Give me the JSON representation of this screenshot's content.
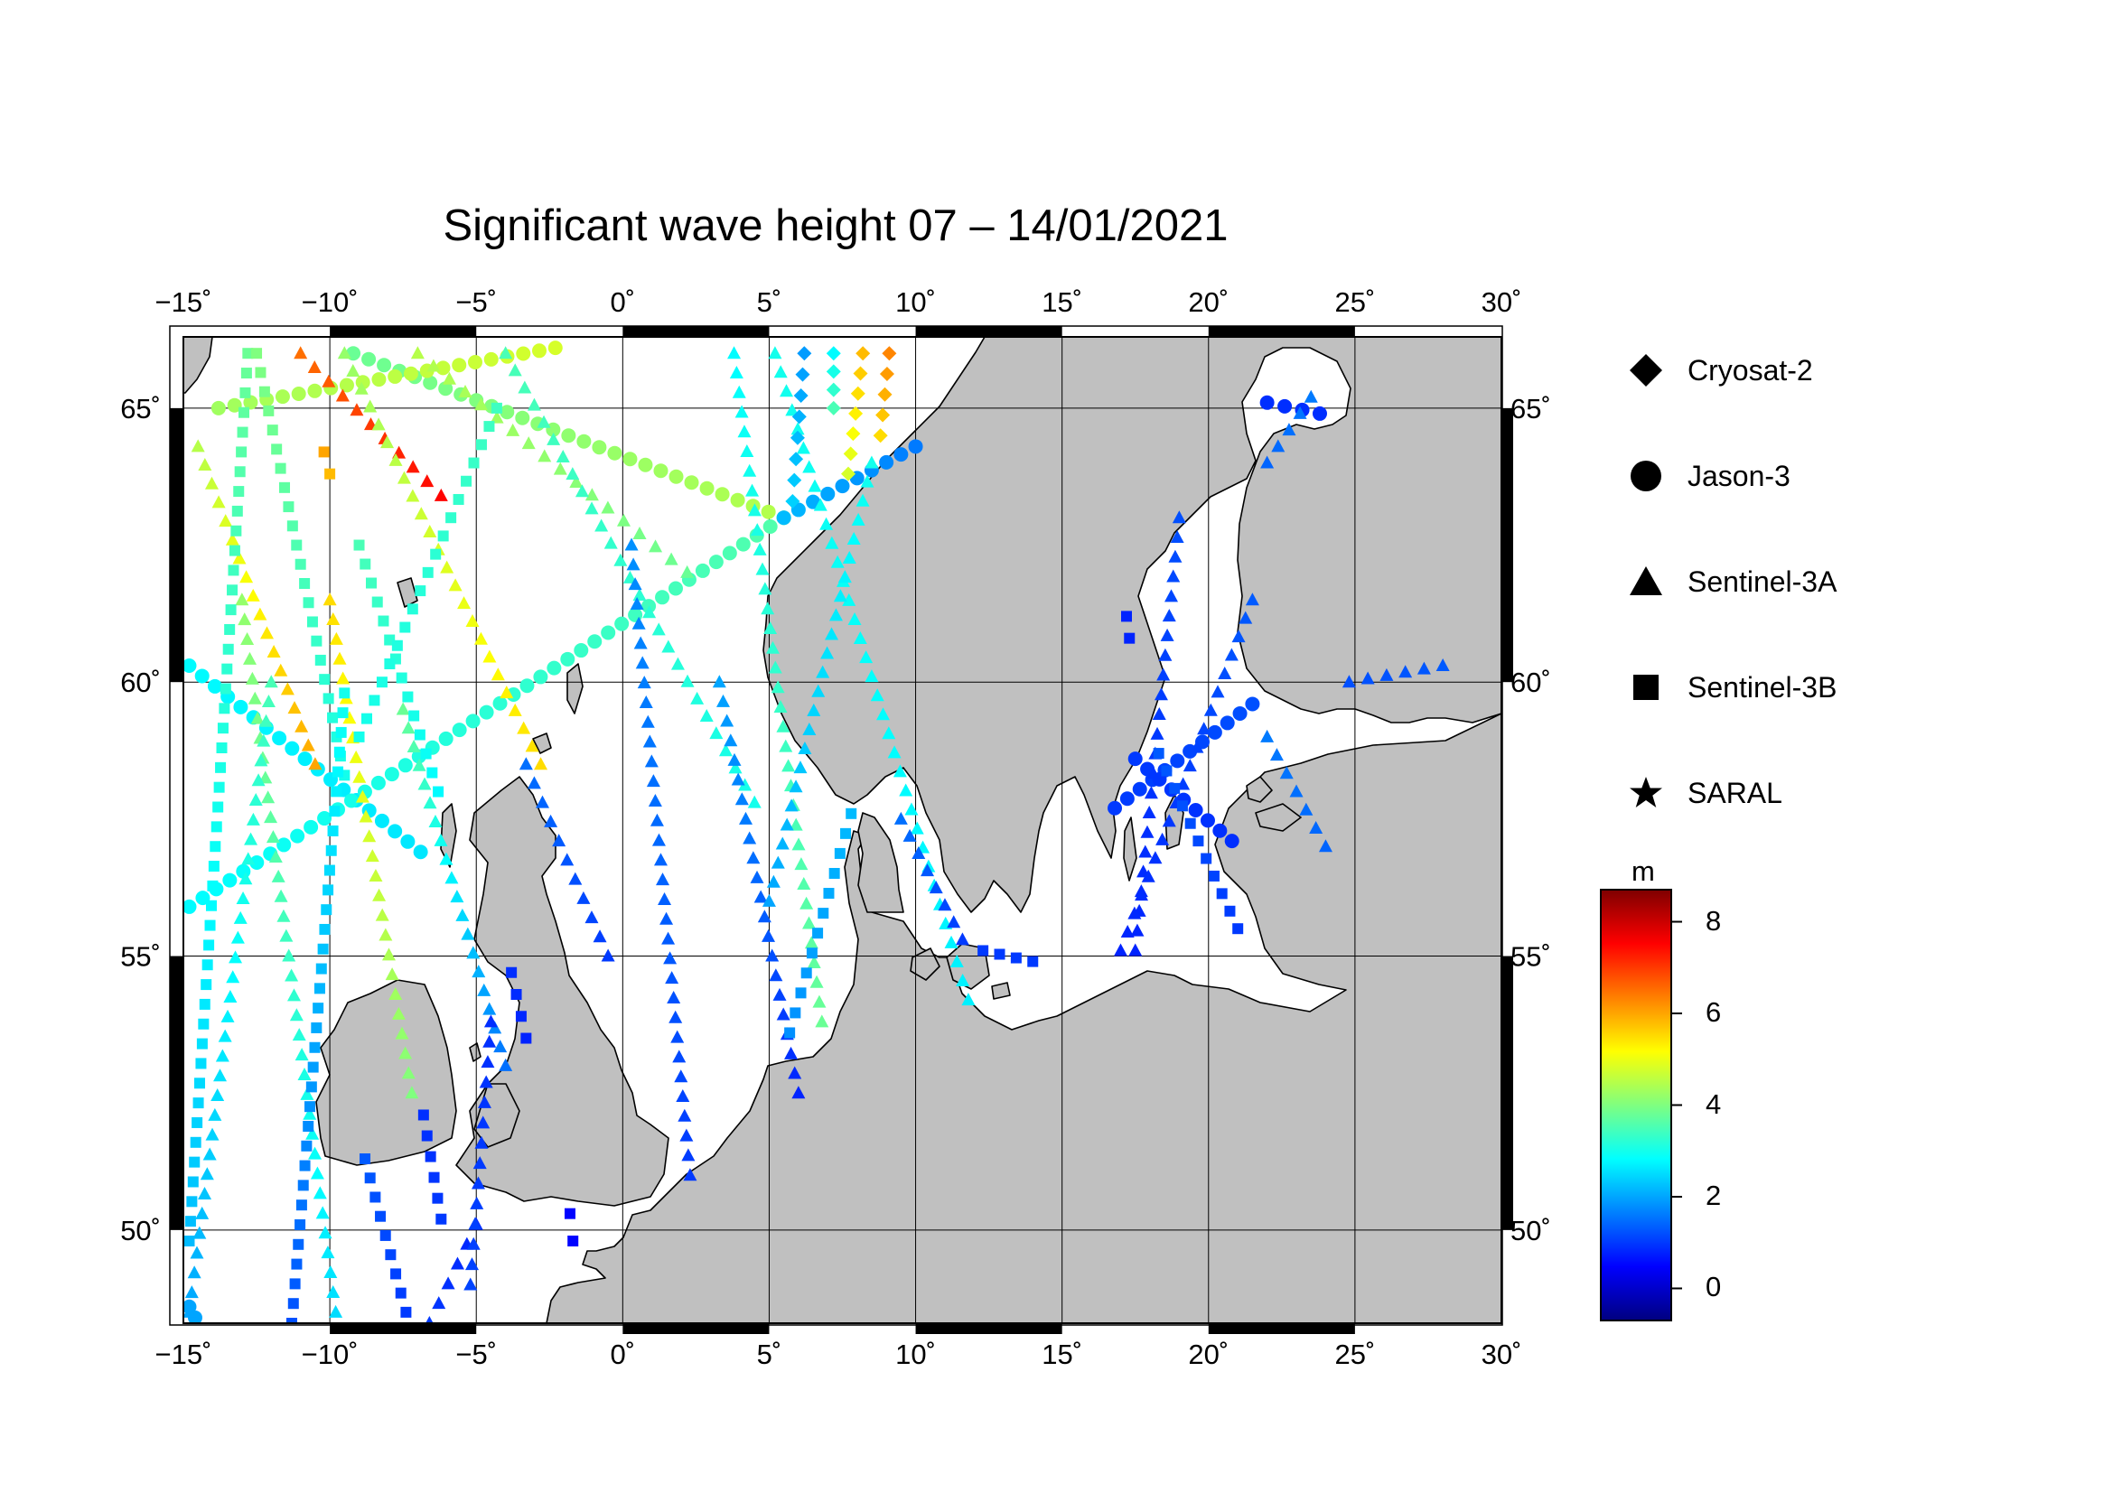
{
  "title": "Significant wave height 07 – 14/01/2021",
  "map": {
    "lon_range": [
      -15,
      30
    ],
    "lat_range": [
      48.3,
      66.3
    ],
    "lon_ticks": [
      {
        "value": -15,
        "label": "−15˚"
      },
      {
        "value": -10,
        "label": "−10˚"
      },
      {
        "value": -5,
        "label": "−5˚"
      },
      {
        "value": 0,
        "label": "0˚"
      },
      {
        "value": 5,
        "label": "5˚"
      },
      {
        "value": 10,
        "label": "10˚"
      },
      {
        "value": 15,
        "label": "15˚"
      },
      {
        "value": 20,
        "label": "20˚"
      },
      {
        "value": 25,
        "label": "25˚"
      },
      {
        "value": 30,
        "label": "30˚"
      }
    ],
    "lat_ticks": [
      {
        "value": 65,
        "label": "65˚"
      },
      {
        "value": 60,
        "label": "60˚"
      },
      {
        "value": 55,
        "label": "55˚"
      },
      {
        "value": 50,
        "label": "50˚"
      }
    ],
    "land_color": "#c0c0c0",
    "sea_color": "#ffffff",
    "grid": true
  },
  "legend": [
    {
      "symbol": "diamond",
      "label": "Cryosat-2"
    },
    {
      "symbol": "circle",
      "label": "Jason-3"
    },
    {
      "symbol": "triangle",
      "label": "Sentinel-3A"
    },
    {
      "symbol": "square",
      "label": "Sentinel-3B"
    },
    {
      "symbol": "star",
      "label": "SARAL"
    }
  ],
  "colorbar": {
    "unit": "m",
    "min": -0.7,
    "max": 8.7,
    "ticks": [
      {
        "value": 8,
        "label": "8"
      },
      {
        "value": 6,
        "label": "6"
      },
      {
        "value": 4,
        "label": "4"
      },
      {
        "value": 2,
        "label": "2"
      },
      {
        "value": 0,
        "label": "0"
      }
    ],
    "colormap": "jet"
  },
  "chart_data": {
    "type": "scatter",
    "title": "Significant wave height 07 – 14/01/2021",
    "xlabel": "",
    "ylabel": "",
    "x_unit": "degrees longitude",
    "y_unit": "degrees latitude",
    "value_unit": "m",
    "series": [
      {
        "name": "Jason-3",
        "marker": "circle",
        "tracks": [
          {
            "start": [
              -9.2,
              66.0
            ],
            "end": [
              5.5,
              63.0
            ],
            "hs": [
              3.8,
              4.5
            ]
          },
          {
            "start": [
              -14.8,
              60.3
            ],
            "end": [
              -6.9,
              56.9
            ],
            "hs": [
              2.8,
              2.6
            ]
          },
          {
            "start": [
              -14.8,
              55.9
            ],
            "end": [
              5.5,
              63.0
            ],
            "hs": [
              2.8,
              3.6
            ]
          },
          {
            "start": [
              -13.8,
              65.0
            ],
            "end": [
              -2.3,
              66.1
            ],
            "hs": [
              4.3,
              4.8
            ]
          },
          {
            "start": [
              5.5,
              63.0
            ],
            "end": [
              10.0,
              64.3
            ],
            "hs": [
              2.2,
              1.6
            ]
          },
          {
            "start": [
              16.8,
              57.7
            ],
            "end": [
              21.5,
              59.6
            ],
            "hs": [
              1.0,
              1.2
            ]
          },
          {
            "start": [
              17.5,
              58.6
            ],
            "end": [
              20.8,
              57.1
            ],
            "hs": [
              1.0,
              0.9
            ]
          },
          {
            "start": [
              22.0,
              65.1
            ],
            "end": [
              23.8,
              64.9
            ],
            "hs": [
              0.9,
              0.9
            ]
          },
          {
            "start": [
              -14.8,
              48.6
            ],
            "end": [
              -14.6,
              48.4
            ],
            "hs": [
              2.0,
              2.0
            ]
          }
        ]
      },
      {
        "name": "Sentinel-3A",
        "marker": "triangle",
        "tracks": [
          {
            "start": [
              -11.0,
              66.0
            ],
            "end": [
              -6.2,
              63.4
            ],
            "hs": [
              6.5,
              7.5
            ]
          },
          {
            "start": [
              -14.5,
              64.3
            ],
            "end": [
              -10.5,
              58.5
            ],
            "hs": [
              4.5,
              6.0
            ]
          },
          {
            "start": [
              -9.5,
              66.0
            ],
            "end": [
              -2.8,
              58.5
            ],
            "hs": [
              4.2,
              5.5
            ]
          },
          {
            "start": [
              -7.0,
              66.0
            ],
            "end": [
              2.2,
              62.0
            ],
            "hs": [
              4.5,
              3.8
            ]
          },
          {
            "start": [
              -4.0,
              66.0
            ],
            "end": [
              4.5,
              57.8
            ],
            "hs": [
              3.5,
              3.0
            ]
          },
          {
            "start": [
              5.2,
              66.0
            ],
            "end": [
              11.8,
              54.2
            ],
            "hs": [
              3.0,
              2.7
            ]
          },
          {
            "start": [
              3.8,
              66.0
            ],
            "end": [
              6.8,
              53.8
            ],
            "hs": [
              2.8,
              3.8
            ]
          },
          {
            "start": [
              -13.0,
              61.5
            ],
            "end": [
              -9.8,
              48.5
            ],
            "hs": [
              4.2,
              2.5
            ]
          },
          {
            "start": [
              -12.0,
              60.0
            ],
            "end": [
              -14.8,
              48.5
            ],
            "hs": [
              3.5,
              2.0
            ]
          },
          {
            "start": [
              -10.0,
              61.5
            ],
            "end": [
              -7.2,
              52.5
            ],
            "hs": [
              5.5,
              4.0
            ]
          },
          {
            "start": [
              -7.5,
              59.5
            ],
            "end": [
              -4.0,
              53.0
            ],
            "hs": [
              3.8,
              1.5
            ]
          },
          {
            "start": [
              -3.3,
              58.5
            ],
            "end": [
              -0.5,
              55.0
            ],
            "hs": [
              1.5,
              1.0
            ]
          },
          {
            "start": [
              0.3,
              62.5
            ],
            "end": [
              2.3,
              51.0
            ],
            "hs": [
              1.8,
              1.0
            ]
          },
          {
            "start": [
              3.3,
              60.0
            ],
            "end": [
              6.0,
              52.5
            ],
            "hs": [
              2.0,
              0.8
            ]
          },
          {
            "start": [
              8.5,
              64.0
            ],
            "end": [
              5.0,
              56.0
            ],
            "hs": [
              3.0,
              2.0
            ]
          },
          {
            "start": [
              9.5,
              57.5
            ],
            "end": [
              11.6,
              55.3
            ],
            "hs": [
              1.5,
              1.0
            ]
          },
          {
            "start": [
              19.0,
              63.0
            ],
            "end": [
              17.5,
              55.1
            ],
            "hs": [
              1.2,
              0.8
            ]
          },
          {
            "start": [
              17.0,
              55.1
            ],
            "end": [
              21.5,
              61.5
            ],
            "hs": [
              0.8,
              1.3
            ]
          },
          {
            "start": [
              22.0,
              64.0
            ],
            "end": [
              23.5,
              65.2
            ],
            "hs": [
              1.4,
              1.6
            ]
          },
          {
            "start": [
              22.0,
              59.0
            ],
            "end": [
              24.0,
              57.0
            ],
            "hs": [
              1.6,
              1.4
            ]
          },
          {
            "start": [
              24.8,
              60.0
            ],
            "end": [
              28.0,
              60.3
            ],
            "hs": [
              1.2,
              1.3
            ]
          },
          {
            "start": [
              -5.0,
              50.1
            ],
            "end": [
              -6.6,
              48.3
            ],
            "hs": [
              0.8,
              1.0
            ]
          },
          {
            "start": [
              -4.5,
              53.8
            ],
            "end": [
              -5.2,
              49.0
            ],
            "hs": [
              0.9,
              1.1
            ]
          }
        ]
      },
      {
        "name": "Sentinel-3B",
        "marker": "square",
        "tracks": [
          {
            "start": [
              -12.8,
              66.0
            ],
            "end": [
              -14.8,
              49.8
            ],
            "hs": [
              3.8,
              2.2
            ]
          },
          {
            "start": [
              -12.5,
              66.0
            ],
            "end": [
              -9.5,
              58.3
            ],
            "hs": [
              4.0,
              3.0
            ]
          },
          {
            "start": [
              -9.5,
              59.8
            ],
            "end": [
              -11.3,
              48.3
            ],
            "hs": [
              3.0,
              1.2
            ]
          },
          {
            "start": [
              -10.2,
              64.2
            ],
            "end": [
              -10.0,
              63.8
            ],
            "hs": [
              6.0,
              5.8
            ]
          },
          {
            "start": [
              -9.0,
              62.5
            ],
            "end": [
              -6.3,
              58.0
            ],
            "hs": [
              3.5,
              2.8
            ]
          },
          {
            "start": [
              -4.3,
              65.0
            ],
            "end": [
              -9.0,
              59.0
            ],
            "hs": [
              3.4,
              3.0
            ]
          },
          {
            "start": [
              -8.8,
              51.3
            ],
            "end": [
              -7.4,
              48.5
            ],
            "hs": [
              1.3,
              1.0
            ]
          },
          {
            "start": [
              -6.8,
              52.1
            ],
            "end": [
              -6.2,
              50.2
            ],
            "hs": [
              0.9,
              1.0
            ]
          },
          {
            "start": [
              -3.8,
              54.7
            ],
            "end": [
              -3.3,
              53.5
            ],
            "hs": [
              0.9,
              0.8
            ]
          },
          {
            "start": [
              -1.8,
              50.3
            ],
            "end": [
              -1.7,
              49.8
            ],
            "hs": [
              0.5,
              0.5
            ]
          },
          {
            "start": [
              7.8,
              57.6
            ],
            "end": [
              5.7,
              53.6
            ],
            "hs": [
              2.2,
              1.8
            ]
          },
          {
            "start": [
              12.3,
              55.1
            ],
            "end": [
              14.0,
              54.9
            ],
            "hs": [
              1.0,
              1.0
            ]
          },
          {
            "start": [
              18.3,
              58.7
            ],
            "end": [
              21.0,
              55.5
            ],
            "hs": [
              1.3,
              1.0
            ]
          },
          {
            "start": [
              17.2,
              61.2
            ],
            "end": [
              17.3,
              60.8
            ],
            "hs": [
              0.8,
              0.8
            ]
          }
        ]
      },
      {
        "name": "Cryosat-2",
        "marker": "diamond",
        "tracks": [
          {
            "start": [
              6.2,
              66.0
            ],
            "end": [
              5.8,
              63.3
            ],
            "hs": [
              1.9,
              2.4
            ]
          },
          {
            "start": [
              7.2,
              66.0
            ],
            "end": [
              7.2,
              65.0
            ],
            "hs": [
              2.8,
              3.5
            ]
          },
          {
            "start": [
              8.2,
              66.0
            ],
            "end": [
              7.7,
              63.8
            ],
            "hs": [
              5.8,
              4.8
            ]
          },
          {
            "start": [
              9.1,
              66.0
            ],
            "end": [
              8.8,
              64.5
            ],
            "hs": [
              6.3,
              5.5
            ]
          }
        ]
      },
      {
        "name": "SARAL",
        "marker": "star",
        "tracks": []
      }
    ]
  }
}
